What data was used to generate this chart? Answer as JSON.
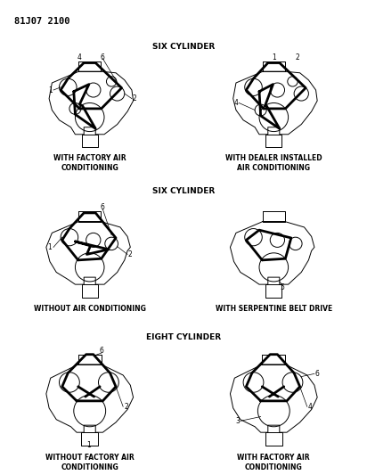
{
  "title_code": "81J07 2100",
  "background_color": "#ffffff",
  "line_color": "#000000",
  "text_color": "#000000",
  "section_titles": [
    "SIX CYLINDER",
    "SIX CYLINDER",
    "EIGHT CYLINDER"
  ],
  "diagram_labels": [
    [
      "WITH FACTORY AIR\nCONDITIONING",
      "WITH DEALER INSTALLED\nAIR CONDITIONING"
    ],
    [
      "WITHOUT AIR CONDITIONING",
      "WITH SERPENTINE BELT DRIVE"
    ],
    [
      "WITHOUT FACTORY AIR\nCONDITIONING",
      "WITH FACTORY AIR\nCONDITIONING"
    ]
  ],
  "title_fontsize": 6.5,
  "label_fontsize": 5.5,
  "code_fontsize": 7.5,
  "number_fontsize": 5.5
}
